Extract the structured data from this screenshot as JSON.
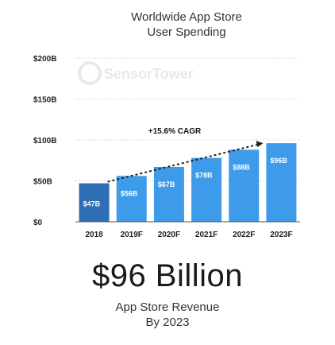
{
  "title_lines": [
    "Worldwide App Store",
    "User Spending"
  ],
  "watermark": "SensorTower",
  "headline": "$96 Billion",
  "subtitle_lines": [
    "App Store Revenue",
    "By 2023"
  ],
  "colors": {
    "bar_actual": "#2f6eb5",
    "bar_forecast": "#3d9be9",
    "grid": "#d9d9d9",
    "arrow": "#222222"
  },
  "chart_data": {
    "type": "bar",
    "categories": [
      "2018",
      "2019F",
      "2020F",
      "2021F",
      "2022F",
      "2023F"
    ],
    "values": [
      47,
      56,
      67,
      78,
      88,
      96
    ],
    "value_labels": [
      "$47B",
      "$56B",
      "$67B",
      "$78B",
      "$88B",
      "$96B"
    ],
    "ylim": [
      0,
      200
    ],
    "yticks": [
      0,
      50,
      100,
      150,
      200
    ],
    "ytick_labels": [
      "$0",
      "$50B",
      "$100B",
      "$150B",
      "$200B"
    ],
    "grid": true,
    "annotation": "+15.6% CAGR",
    "trend_arrow": {
      "from_category": "2018",
      "to_category": "2023F"
    }
  }
}
